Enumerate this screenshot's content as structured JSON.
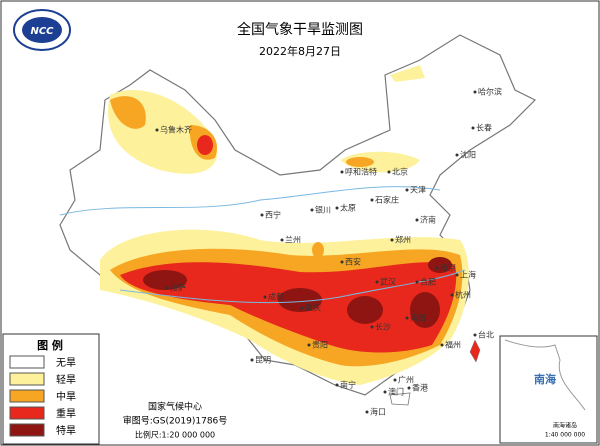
{
  "header": {
    "title": "全国气象干旱监测图",
    "date": "2022年8月27日",
    "logo": "NCC"
  },
  "legend": {
    "title": "图 例",
    "items": [
      {
        "label": "无旱",
        "color": "#ffffff"
      },
      {
        "label": "轻旱",
        "color": "#fdf19c"
      },
      {
        "label": "中旱",
        "color": "#f6a623"
      },
      {
        "label": "重旱",
        "color": "#e8281c"
      },
      {
        "label": "特旱",
        "color": "#8e1512"
      }
    ]
  },
  "footer": {
    "agency": "国家气候中心",
    "approval": "审图号:GS(2019)1786号",
    "scale": "比例尺:1:20 000 000"
  },
  "inset": {
    "sea": "南海",
    "islands": "南海诸岛",
    "scale": "1:40 000 000"
  },
  "cities": [
    "哈尔滨",
    "长春",
    "沈阳",
    "乌鲁木齐",
    "呼和浩特",
    "北京",
    "天津",
    "石家庄",
    "太原",
    "银川",
    "西宁",
    "兰州",
    "济南",
    "郑州",
    "西安",
    "拉萨",
    "成都",
    "重庆",
    "武汉",
    "合肥",
    "南京",
    "上海",
    "杭州",
    "长沙",
    "南昌",
    "贵阳",
    "福州",
    "台北",
    "昆明",
    "南宁",
    "广州",
    "香港",
    "澳门",
    "海口"
  ]
}
